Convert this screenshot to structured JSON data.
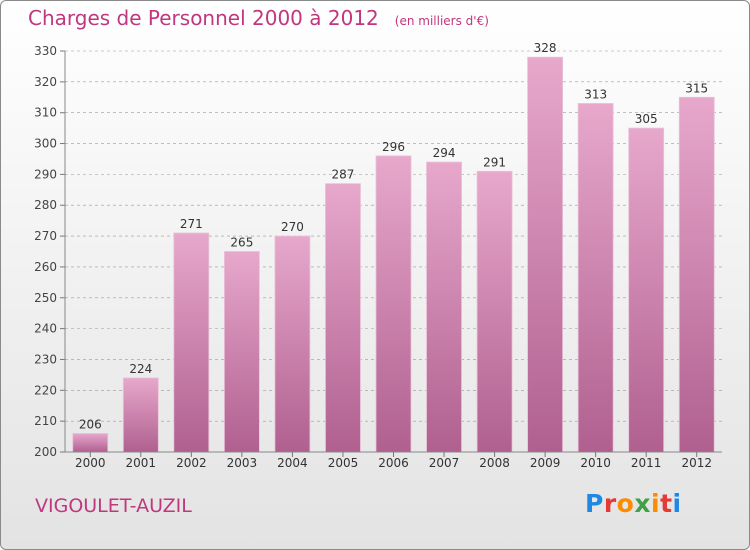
{
  "header": {
    "title": "Charges de Personnel 2000 à 2012",
    "subtitle": "(en milliers d'€)"
  },
  "footer": {
    "commune": "VIGOULET-AUZIL",
    "logo": "Proxiti"
  },
  "colors": {
    "accent": "#c0377f",
    "bar_top": "#e7a8cc",
    "bar_bottom": "#b0608f",
    "logo_letters": [
      "#1e88e5",
      "#e53935",
      "#fb8c00",
      "#43a047",
      "#fb8c00",
      "#e53935",
      "#1e88e5"
    ]
  },
  "chart_data": {
    "type": "bar",
    "title": "Charges de Personnel 2000 à 2012",
    "subtitle": "(en milliers d'€)",
    "categories": [
      "2000",
      "2001",
      "2002",
      "2003",
      "2004",
      "2005",
      "2006",
      "2007",
      "2008",
      "2009",
      "2010",
      "2011",
      "2012"
    ],
    "values": [
      206,
      224,
      271,
      265,
      270,
      287,
      296,
      294,
      291,
      328,
      313,
      305,
      315
    ],
    "data_labels": [
      "206",
      "224",
      "271",
      "265",
      "270",
      "287",
      "296",
      "294",
      "291",
      "328",
      "313",
      "305",
      "315"
    ],
    "ylim": [
      200,
      330
    ],
    "yticks": [
      200,
      210,
      220,
      230,
      240,
      250,
      260,
      270,
      280,
      290,
      300,
      310,
      320,
      330
    ],
    "xlabel": "",
    "ylabel": "",
    "grid": "horizontal-dashed",
    "legend": "none"
  }
}
